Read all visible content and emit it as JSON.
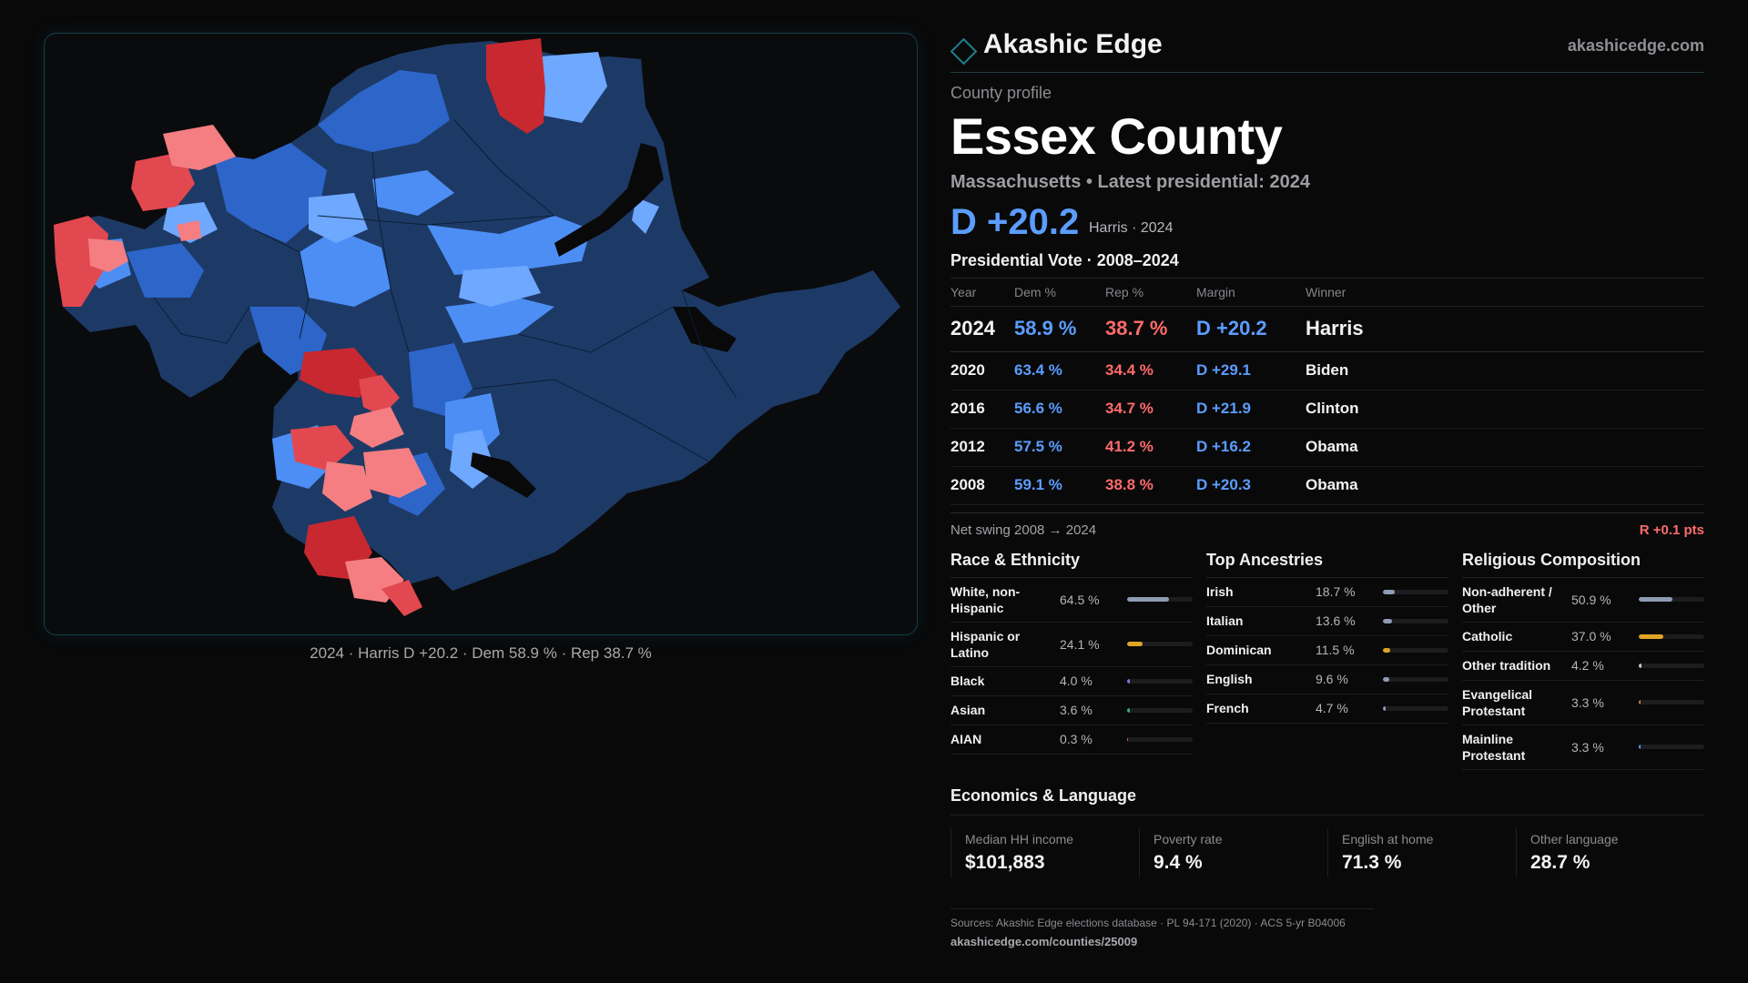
{
  "map": {
    "caption": "2024 · Harris D +20.2 · Dem 58.9 % · Rep 38.7 %",
    "colors": {
      "strong_dem": "#1d3a66",
      "dem": "#2d65c9",
      "lean_dem": "#4d8ef5",
      "tilt_dem": "#6ea8ff",
      "tilt_rep": "#f47e82",
      "lean_rep": "#e2484f",
      "strong_rep": "#c8282f",
      "water": "#09090a"
    }
  },
  "brand": {
    "name": "Akashic Edge",
    "url": "akashicedge.com"
  },
  "profile": {
    "kicker": "County profile",
    "county": "Essex County",
    "subline": "Massachusetts • Latest presidential: 2024",
    "headline_margin": "D +20.2",
    "headline_note": "Harris · 2024"
  },
  "vote": {
    "title": "Presidential Vote · 2008–2024",
    "headers": {
      "year": "Year",
      "dem": "Dem %",
      "rep": "Rep %",
      "margin": "Margin",
      "winner": "Winner"
    },
    "rows": [
      {
        "year": "2024",
        "dem": "58.9 %",
        "rep": "38.7 %",
        "margin": "D +20.2",
        "winner": "Harris"
      },
      {
        "year": "2020",
        "dem": "63.4 %",
        "rep": "34.4 %",
        "margin": "D +29.1",
        "winner": "Biden"
      },
      {
        "year": "2016",
        "dem": "56.6 %",
        "rep": "34.7 %",
        "margin": "D +21.9",
        "winner": "Clinton"
      },
      {
        "year": "2012",
        "dem": "57.5 %",
        "rep": "41.2 %",
        "margin": "D +16.2",
        "winner": "Obama"
      },
      {
        "year": "2008",
        "dem": "59.1 %",
        "rep": "38.8 %",
        "margin": "D +20.3",
        "winner": "Obama"
      }
    ],
    "swing_label": "Net swing 2008 → 2024",
    "swing_value": "R +0.1 pts"
  },
  "race": {
    "title": "Race & Ethnicity",
    "rows": [
      {
        "label": "White, non-Hispanic",
        "value": "64.5 %",
        "pct": 64.5,
        "color": "#8f9bb3"
      },
      {
        "label": "Hispanic or Latino",
        "value": "24.1 %",
        "pct": 24.1,
        "color": "#e0a526"
      },
      {
        "label": "Black",
        "value": "4.0 %",
        "pct": 4.0,
        "color": "#8b6cf0"
      },
      {
        "label": "Asian",
        "value": "3.6 %",
        "pct": 3.6,
        "color": "#27b38f"
      },
      {
        "label": "AIAN",
        "value": "0.3 %",
        "pct": 0.3,
        "color": "#e26f4f"
      }
    ]
  },
  "ancestry": {
    "title": "Top Ancestries",
    "rows": [
      {
        "label": "Irish",
        "value": "18.7 %",
        "pct": 18.7,
        "color": "#8f9bb3"
      },
      {
        "label": "Italian",
        "value": "13.6 %",
        "pct": 13.6,
        "color": "#8f9bb3"
      },
      {
        "label": "Dominican",
        "value": "11.5 %",
        "pct": 11.5,
        "color": "#e0a526"
      },
      {
        "label": "English",
        "value": "9.6 %",
        "pct": 9.6,
        "color": "#8f9bb3"
      },
      {
        "label": "French",
        "value": "4.7 %",
        "pct": 4.7,
        "color": "#8f9bb3"
      }
    ]
  },
  "religion": {
    "title": "Religious Composition",
    "rows": [
      {
        "label": "Non-adherent / Other",
        "value": "50.9 %",
        "pct": 50.9,
        "color": "#8f9bb3"
      },
      {
        "label": "Catholic",
        "value": "37.0 %",
        "pct": 37.0,
        "color": "#e0a526"
      },
      {
        "label": "Other tradition",
        "value": "4.2 %",
        "pct": 4.2,
        "color": "#c9c9cc"
      },
      {
        "label": "Evangelical Protestant",
        "value": "3.3 %",
        "pct": 3.3,
        "color": "#e26f4f"
      },
      {
        "label": "Mainline Protestant",
        "value": "3.3 %",
        "pct": 3.3,
        "color": "#5b9dff"
      }
    ]
  },
  "economics": {
    "title": "Economics & Language",
    "cells": [
      {
        "label": "Median HH income",
        "value": "$101,883"
      },
      {
        "label": "Poverty rate",
        "value": "9.4 %"
      },
      {
        "label": "English at home",
        "value": "71.3 %"
      },
      {
        "label": "Other language",
        "value": "28.7 %"
      }
    ]
  },
  "sources": {
    "line": "Sources: Akashic Edge elections database · PL 94-171 (2020) · ACS 5-yr B04006",
    "url": "akashicedge.com/counties/25009"
  }
}
